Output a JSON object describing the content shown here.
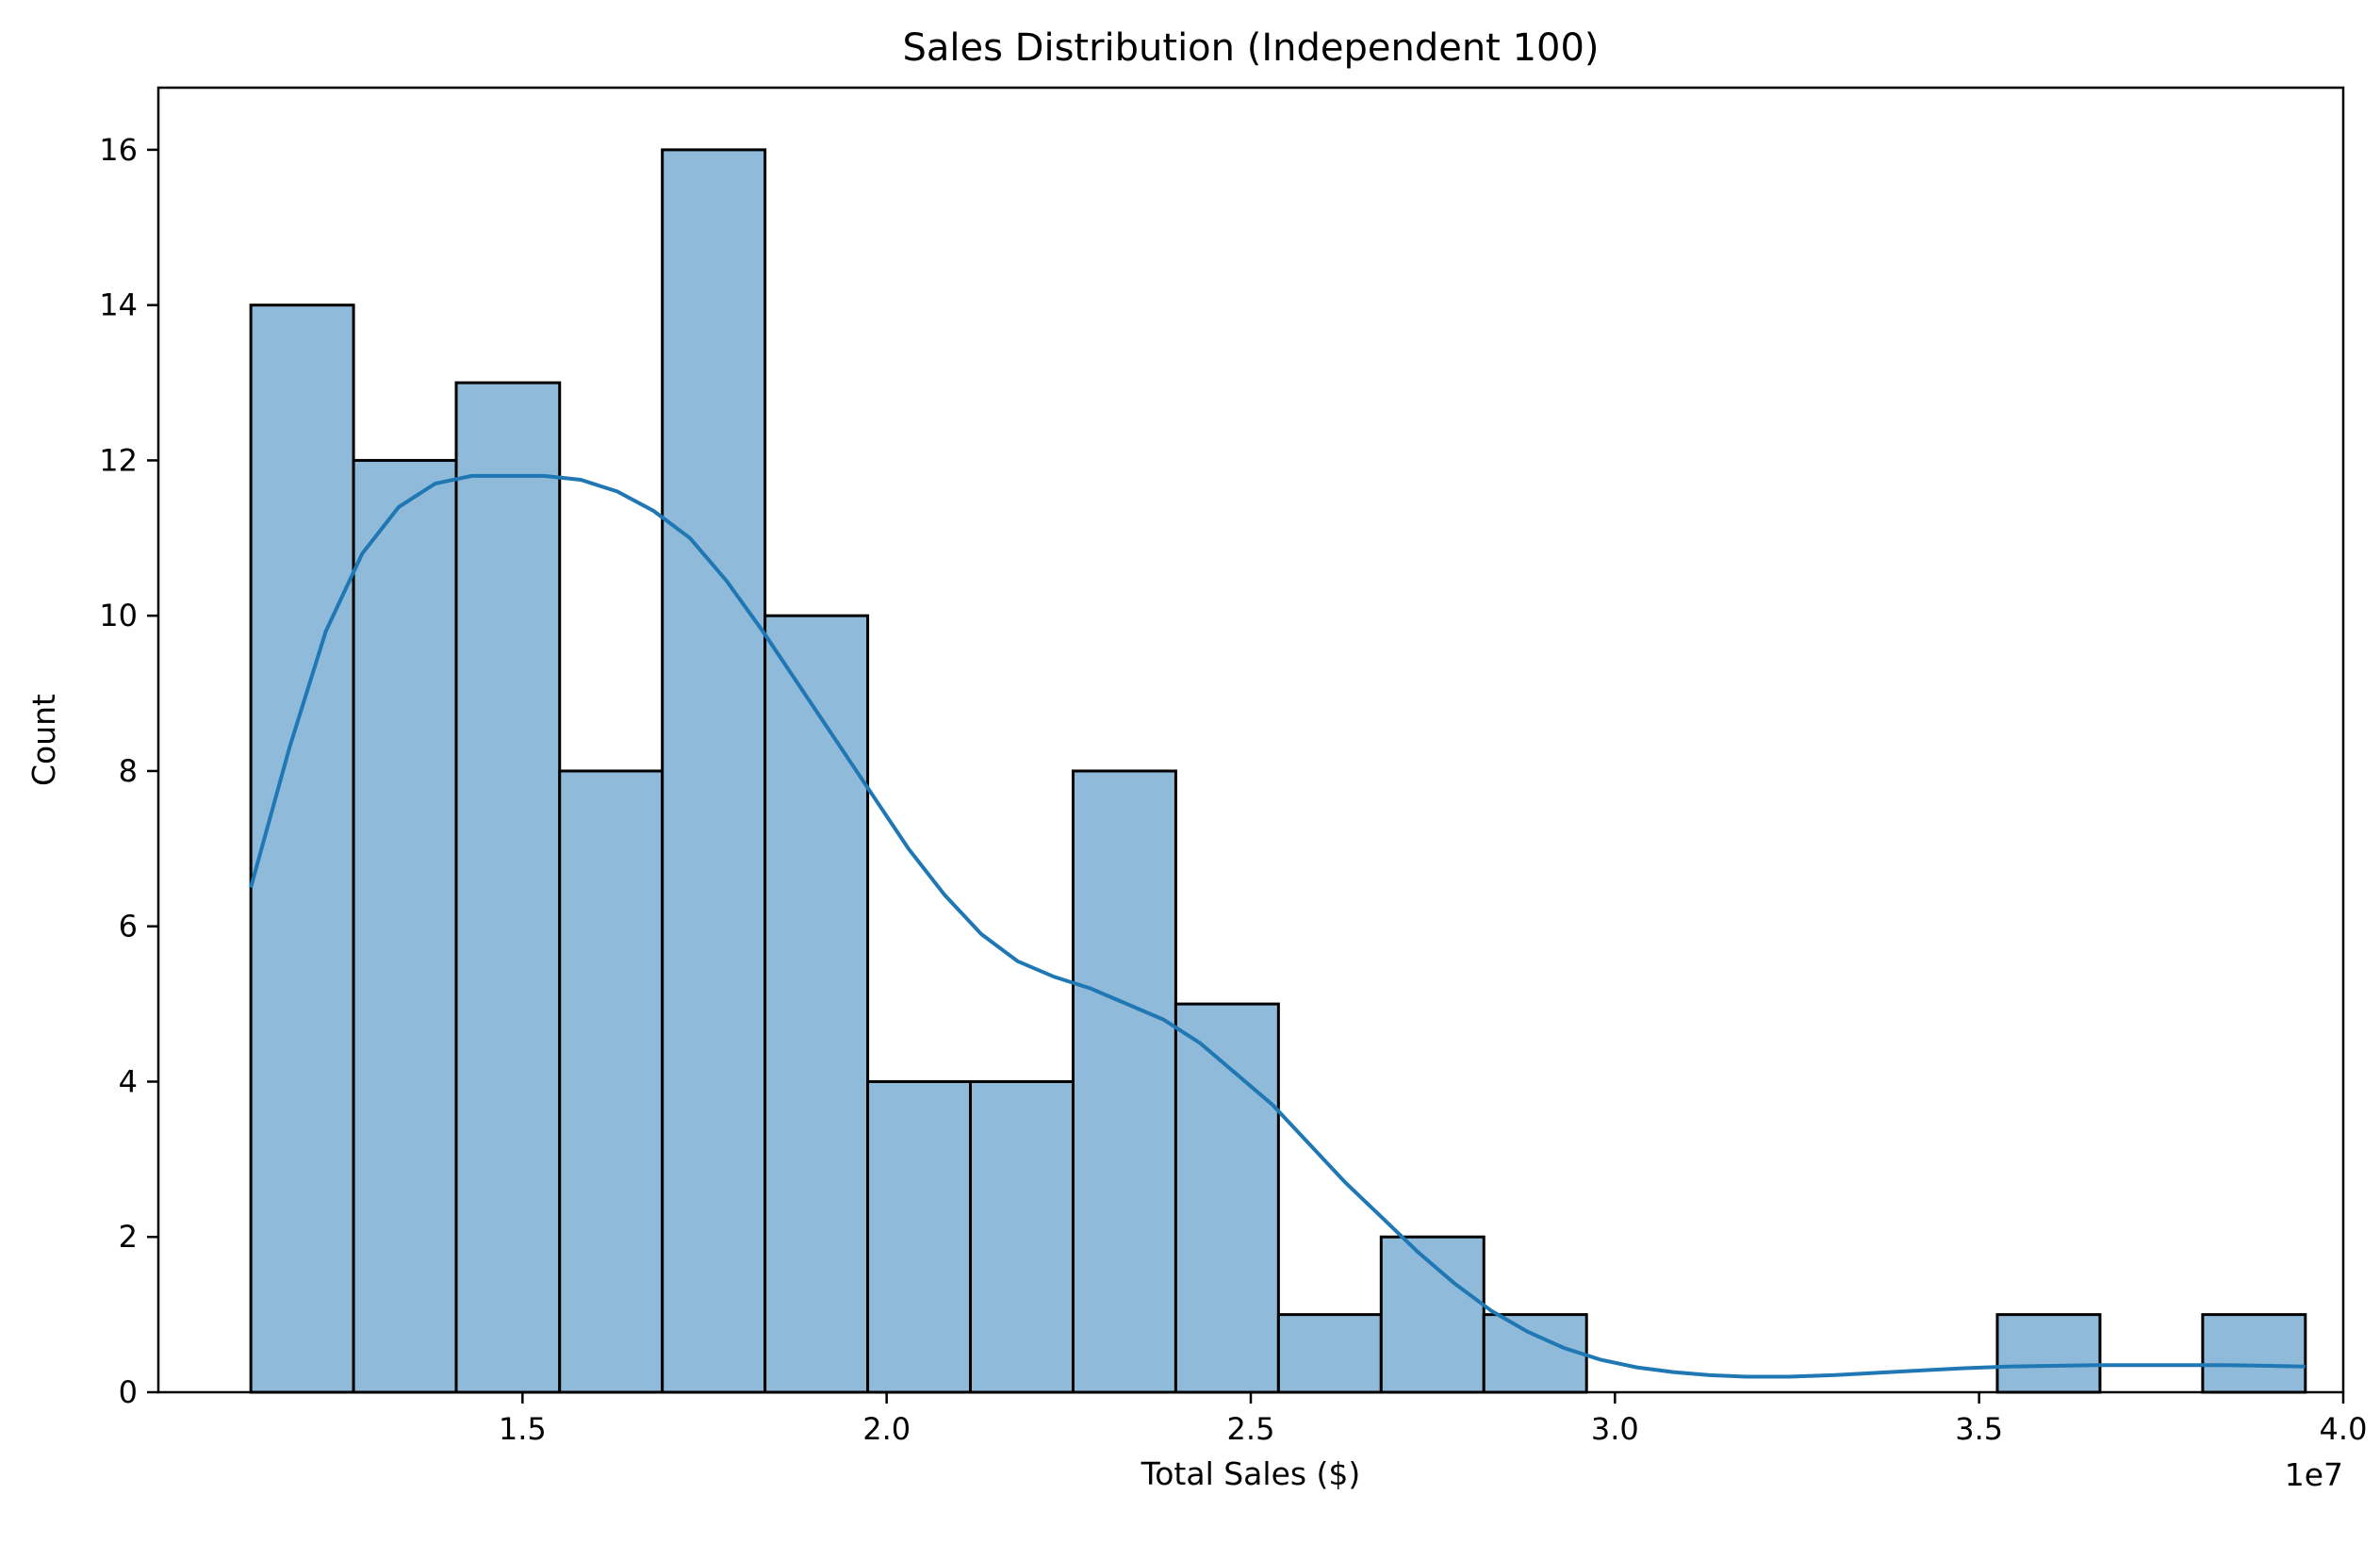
{
  "chart_data": {
    "type": "histogram",
    "title": "Sales Distribution (Independent 100)",
    "xlabel": "Total Sales ($)",
    "ylabel": "Count",
    "x_offset_label": "1e7",
    "xlim": [
      1.0,
      4.0
    ],
    "ylim": [
      0,
      16.8
    ],
    "xticks": [
      1.5,
      2.0,
      2.5,
      3.0,
      3.5,
      4.0
    ],
    "xtick_labels": [
      "1.5",
      "2.0",
      "2.5",
      "3.0",
      "3.5",
      "4.0"
    ],
    "yticks": [
      0,
      2,
      4,
      6,
      8,
      10,
      12,
      14,
      16
    ],
    "ytick_labels": [
      "0",
      "2",
      "4",
      "6",
      "8",
      "10",
      "12",
      "14",
      "16"
    ],
    "bins": [
      {
        "start": 1.127,
        "end": 1.268,
        "count": 14
      },
      {
        "start": 1.268,
        "end": 1.409,
        "count": 12
      },
      {
        "start": 1.409,
        "end": 1.551,
        "count": 13
      },
      {
        "start": 1.551,
        "end": 1.692,
        "count": 8
      },
      {
        "start": 1.692,
        "end": 1.833,
        "count": 16
      },
      {
        "start": 1.833,
        "end": 1.974,
        "count": 10
      },
      {
        "start": 1.974,
        "end": 2.115,
        "count": 4
      },
      {
        "start": 2.115,
        "end": 2.256,
        "count": 4
      },
      {
        "start": 2.256,
        "end": 2.397,
        "count": 8
      },
      {
        "start": 2.397,
        "end": 2.538,
        "count": 5
      },
      {
        "start": 2.538,
        "end": 2.679,
        "count": 1
      },
      {
        "start": 2.679,
        "end": 2.82,
        "count": 2
      },
      {
        "start": 2.82,
        "end": 2.961,
        "count": 1
      },
      {
        "start": 2.961,
        "end": 3.102,
        "count": 0
      },
      {
        "start": 3.102,
        "end": 3.243,
        "count": 0
      },
      {
        "start": 3.243,
        "end": 3.384,
        "count": 0
      },
      {
        "start": 3.384,
        "end": 3.525,
        "count": 0
      },
      {
        "start": 3.525,
        "end": 3.666,
        "count": 1
      },
      {
        "start": 3.666,
        "end": 3.807,
        "count": 0
      },
      {
        "start": 3.807,
        "end": 3.948,
        "count": 1
      }
    ],
    "kde": {
      "x": [
        1.127,
        1.18,
        1.23,
        1.28,
        1.33,
        1.38,
        1.43,
        1.48,
        1.53,
        1.58,
        1.63,
        1.68,
        1.73,
        1.78,
        1.83,
        1.88,
        1.93,
        1.98,
        2.03,
        2.08,
        2.13,
        2.18,
        2.23,
        2.28,
        2.33,
        2.38,
        2.43,
        2.48,
        2.53,
        2.58,
        2.63,
        2.68,
        2.73,
        2.78,
        2.83,
        2.88,
        2.93,
        2.98,
        3.03,
        3.08,
        3.13,
        3.18,
        3.24,
        3.3,
        3.36,
        3.42,
        3.48,
        3.54,
        3.6,
        3.66,
        3.72,
        3.78,
        3.84,
        3.9,
        3.948
      ],
      "y": [
        6.5,
        8.3,
        9.8,
        10.8,
        11.4,
        11.7,
        11.8,
        11.8,
        11.8,
        11.75,
        11.6,
        11.35,
        11.0,
        10.45,
        9.8,
        9.1,
        8.4,
        7.7,
        7.0,
        6.4,
        5.9,
        5.55,
        5.35,
        5.2,
        5.0,
        4.8,
        4.5,
        4.1,
        3.7,
        3.2,
        2.7,
        2.25,
        1.8,
        1.4,
        1.05,
        0.78,
        0.57,
        0.42,
        0.32,
        0.26,
        0.22,
        0.2,
        0.2,
        0.22,
        0.25,
        0.28,
        0.31,
        0.33,
        0.34,
        0.35,
        0.35,
        0.35,
        0.35,
        0.34,
        0.33
      ]
    },
    "colors": {
      "bar_fill": "#8fbad9",
      "bar_edge": "#000000",
      "kde_line": "#1f77b4"
    },
    "grid": false,
    "legend": "none"
  }
}
